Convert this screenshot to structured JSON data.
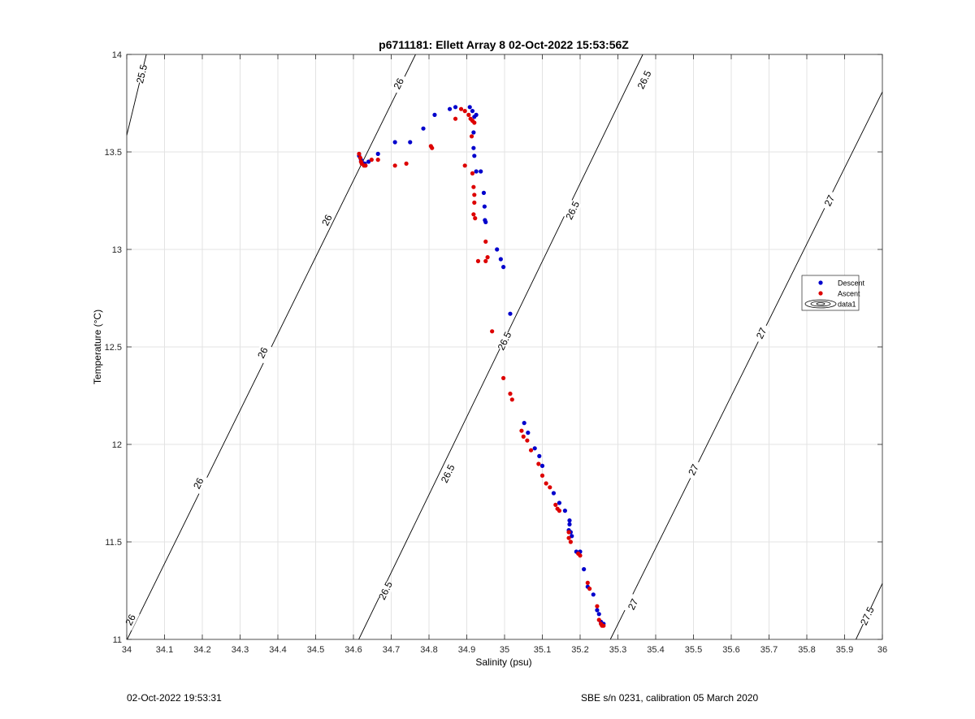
{
  "chart_data": {
    "type": "scatter",
    "title": "p6711181: Ellett Array 8 02-Oct-2022 15:53:56Z",
    "xlabel": "Salinity (psu)",
    "ylabel": "Temperature (°C)",
    "xlim": [
      34,
      36
    ],
    "ylim": [
      11,
      14
    ],
    "x_ticks": [
      34,
      34.1,
      34.2,
      34.3,
      34.4,
      34.5,
      34.6,
      34.7,
      34.8,
      34.9,
      35,
      35.1,
      35.2,
      35.3,
      35.4,
      35.5,
      35.6,
      35.7,
      35.8,
      35.9,
      36
    ],
    "x_tick_labels": [
      "34",
      "34.1",
      "34.2",
      "34.3",
      "34.4",
      "34.5",
      "34.6",
      "34.7",
      "34.8",
      "34.9",
      "35",
      "35.1",
      "35.2",
      "35.3",
      "35.4",
      "35.5",
      "35.6",
      "35.7",
      "35.8",
      "35.9",
      "36"
    ],
    "y_ticks": [
      11,
      11.5,
      12,
      12.5,
      13,
      13.5,
      14
    ],
    "y_tick_labels": [
      "11",
      "11.5",
      "12",
      "12.5",
      "13",
      "13.5",
      "14"
    ],
    "grid": true,
    "legend_position": "right",
    "legend": [
      {
        "name": "Descent",
        "color": "#0000cc",
        "marker": "dot"
      },
      {
        "name": "Ascent",
        "color": "#dd0000",
        "marker": "dot"
      },
      {
        "name": "data1",
        "color": "#000000",
        "marker": "contour"
      }
    ],
    "series": [
      {
        "name": "Descent",
        "color": "#0000cc",
        "points": [
          [
            34.615,
            13.48
          ],
          [
            34.62,
            13.46
          ],
          [
            34.622,
            13.45
          ],
          [
            34.625,
            13.44
          ],
          [
            34.63,
            13.44
          ],
          [
            34.64,
            13.45
          ],
          [
            34.665,
            13.49
          ],
          [
            34.71,
            13.55
          ],
          [
            34.75,
            13.55
          ],
          [
            34.785,
            13.62
          ],
          [
            34.815,
            13.69
          ],
          [
            34.855,
            13.72
          ],
          [
            34.87,
            13.73
          ],
          [
            34.908,
            13.73
          ],
          [
            34.915,
            13.71
          ],
          [
            34.925,
            13.69
          ],
          [
            34.92,
            13.68
          ],
          [
            34.918,
            13.6
          ],
          [
            34.918,
            13.52
          ],
          [
            34.92,
            13.48
          ],
          [
            34.925,
            13.4
          ],
          [
            34.937,
            13.4
          ],
          [
            34.945,
            13.29
          ],
          [
            34.947,
            13.22
          ],
          [
            34.948,
            13.15
          ],
          [
            34.95,
            13.14
          ],
          [
            34.98,
            13.0
          ],
          [
            34.99,
            12.95
          ],
          [
            34.997,
            12.91
          ],
          [
            35.015,
            12.67
          ],
          [
            35.052,
            12.11
          ],
          [
            35.062,
            12.06
          ],
          [
            35.08,
            11.98
          ],
          [
            35.092,
            11.94
          ],
          [
            35.1,
            11.89
          ],
          [
            35.13,
            11.75
          ],
          [
            35.145,
            11.7
          ],
          [
            35.16,
            11.66
          ],
          [
            35.172,
            11.61
          ],
          [
            35.172,
            11.59
          ],
          [
            35.17,
            11.56
          ],
          [
            35.175,
            11.55
          ],
          [
            35.178,
            11.53
          ],
          [
            35.19,
            11.45
          ],
          [
            35.2,
            11.45
          ],
          [
            35.21,
            11.36
          ],
          [
            35.22,
            11.27
          ],
          [
            35.235,
            11.23
          ],
          [
            35.245,
            11.15
          ],
          [
            35.25,
            11.13
          ],
          [
            35.255,
            11.09
          ],
          [
            35.258,
            11.08
          ],
          [
            35.262,
            11.08
          ]
        ]
      },
      {
        "name": "Ascent",
        "color": "#dd0000",
        "points": [
          [
            34.615,
            13.49
          ],
          [
            34.618,
            13.47
          ],
          [
            34.62,
            13.45
          ],
          [
            34.622,
            13.44
          ],
          [
            34.628,
            13.43
          ],
          [
            34.632,
            13.43
          ],
          [
            34.648,
            13.46
          ],
          [
            34.665,
            13.46
          ],
          [
            34.71,
            13.43
          ],
          [
            34.74,
            13.44
          ],
          [
            34.805,
            13.53
          ],
          [
            34.808,
            13.52
          ],
          [
            34.87,
            13.67
          ],
          [
            34.885,
            13.72
          ],
          [
            34.895,
            13.71
          ],
          [
            34.905,
            13.69
          ],
          [
            34.91,
            13.67
          ],
          [
            34.915,
            13.66
          ],
          [
            34.92,
            13.65
          ],
          [
            34.913,
            13.58
          ],
          [
            34.895,
            13.43
          ],
          [
            34.915,
            13.39
          ],
          [
            34.918,
            13.32
          ],
          [
            34.92,
            13.28
          ],
          [
            34.92,
            13.24
          ],
          [
            34.918,
            13.18
          ],
          [
            34.922,
            13.16
          ],
          [
            34.95,
            13.04
          ],
          [
            34.955,
            12.96
          ],
          [
            34.95,
            12.94
          ],
          [
            34.93,
            12.94
          ],
          [
            34.967,
            12.58
          ],
          [
            34.997,
            12.34
          ],
          [
            35.015,
            12.26
          ],
          [
            35.02,
            12.23
          ],
          [
            35.045,
            12.07
          ],
          [
            35.05,
            12.04
          ],
          [
            35.06,
            12.02
          ],
          [
            35.07,
            11.97
          ],
          [
            35.09,
            11.9
          ],
          [
            35.1,
            11.84
          ],
          [
            35.11,
            11.8
          ],
          [
            35.12,
            11.78
          ],
          [
            35.135,
            11.69
          ],
          [
            35.14,
            11.67
          ],
          [
            35.145,
            11.66
          ],
          [
            35.17,
            11.55
          ],
          [
            35.17,
            11.52
          ],
          [
            35.175,
            11.5
          ],
          [
            35.195,
            11.44
          ],
          [
            35.2,
            11.43
          ],
          [
            35.22,
            11.29
          ],
          [
            35.225,
            11.26
          ],
          [
            35.245,
            11.17
          ],
          [
            35.25,
            11.1
          ],
          [
            35.255,
            11.08
          ],
          [
            35.258,
            11.07
          ],
          [
            35.262,
            11.07
          ]
        ]
      }
    ],
    "contours": [
      {
        "level": "25.5",
        "labels": [
          "25.5"
        ]
      },
      {
        "level": "26",
        "labels": [
          "26",
          "26",
          "26",
          "26",
          "26"
        ]
      },
      {
        "level": "26.5",
        "labels": [
          "26.5",
          "26.5",
          "26.5",
          "26.5",
          "26.5"
        ]
      },
      {
        "level": "27",
        "labels": [
          "27",
          "27",
          "27",
          "27"
        ]
      },
      {
        "level": "27.5",
        "labels": [
          "27.5"
        ]
      }
    ]
  },
  "footer": {
    "timestamp": "02-Oct-2022 19:53:31",
    "calibration": "SBE s/n 0231, calibration 05 March 2020"
  }
}
